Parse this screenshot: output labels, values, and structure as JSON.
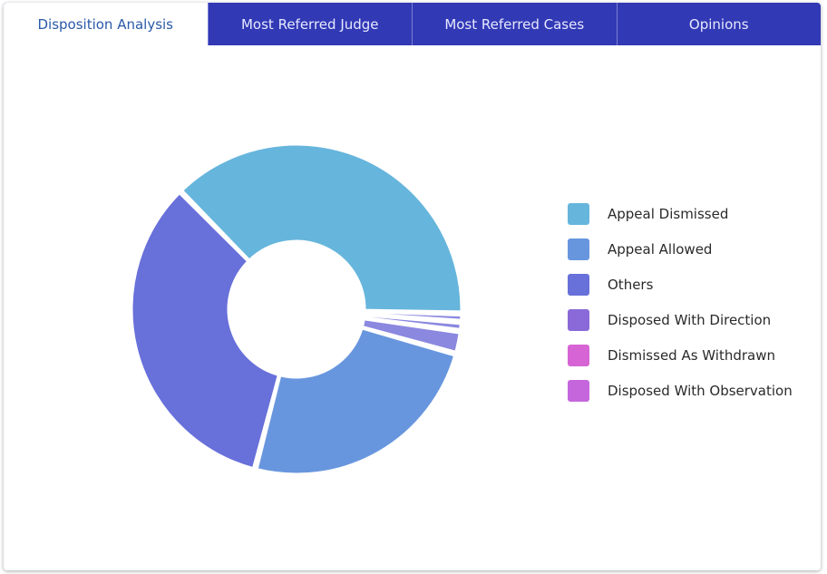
{
  "tabs": [
    {
      "label": "Disposition Analysis",
      "active": true
    },
    {
      "label": "Most Referred Judge",
      "active": false
    },
    {
      "label": "Most Referred Cases",
      "active": false
    },
    {
      "label": "Opinions",
      "active": false
    }
  ],
  "colors": {
    "tab_bar": "#3239b5",
    "active_tab_text": "#2a59a8"
  },
  "chart_data": {
    "type": "pie",
    "variant": "donut",
    "legend_position": "right",
    "categories": [
      "Appeal Dismissed",
      "Appeal Allowed",
      "Others",
      "Disposed With Direction",
      "Dismissed As Withdrawn",
      "Disposed With Observation"
    ],
    "values": [
      37.5,
      24.5,
      33.3,
      2.2,
      0.8,
      0.9
    ],
    "colors": [
      "#66b5dc",
      "#6896de",
      "#6870da",
      "#8a69d8",
      "#d764d4",
      "#c566dc"
    ],
    "slice_colors_in_chart": [
      "#66b5dc",
      "#6896de",
      "#6870da",
      "#8b88e0",
      "#8b88e0",
      "#8b88e0"
    ]
  }
}
